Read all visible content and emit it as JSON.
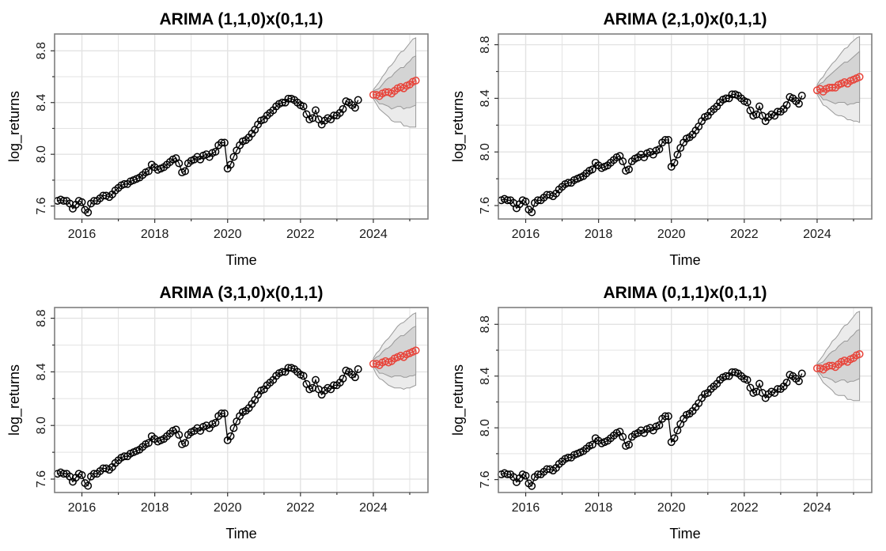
{
  "chart_data": [
    {
      "type": "line",
      "title": "ARIMA (1,1,0)x(0,1,1)",
      "xlabel": "Time",
      "ylabel": "log_returns",
      "xlim": [
        2015.25,
        2025.5
      ],
      "ylim": [
        7.5,
        8.93
      ],
      "x_ticks": [
        2016,
        2018,
        2020,
        2022,
        2024
      ],
      "x_tick_labels": [
        "2016",
        "2018",
        "2020",
        "2022",
        "2024"
      ],
      "y_ticks": [
        7.6,
        8.0,
        8.4,
        8.8
      ],
      "y_tick_labels": [
        "7.6",
        "8.0",
        "8.4",
        "8.8"
      ],
      "grid": true,
      "series": [
        {
          "start": 2015.333,
          "step": 0.08333,
          "values": [
            7.64,
            7.65,
            7.64,
            7.64,
            7.62,
            7.58,
            7.61,
            7.64,
            7.63,
            7.57,
            7.55,
            7.62,
            7.64,
            7.64,
            7.66,
            7.68,
            7.68,
            7.67,
            7.69,
            7.72,
            7.74,
            7.76,
            7.77,
            7.77,
            7.79,
            7.8,
            7.81,
            7.82,
            7.84,
            7.86,
            7.87,
            7.92,
            7.9,
            7.88,
            7.89,
            7.9,
            7.92,
            7.94,
            7.96,
            7.97,
            7.93,
            7.86,
            7.87,
            7.93,
            7.95,
            7.96,
            7.98,
            7.96,
            7.99,
            8.0,
            7.98,
            8.01,
            8.02,
            8.07,
            8.09,
            8.09,
            7.89,
            7.92,
            7.98,
            8.03,
            8.07,
            8.1,
            8.11,
            8.13,
            8.16,
            8.19,
            8.23,
            8.26,
            8.27,
            8.3,
            8.32,
            8.34,
            8.37,
            8.39,
            8.4,
            8.4,
            8.43,
            8.43,
            8.42,
            8.4,
            8.38,
            8.37,
            8.31,
            8.27,
            8.28,
            8.34,
            8.27,
            8.23,
            8.26,
            8.28,
            8.27,
            8.3,
            8.3,
            8.32,
            8.35,
            8.41,
            8.4,
            8.38,
            8.36,
            8.42
          ],
          "color": "#000000"
        },
        {
          "start": 2024.0,
          "step": 0.08333,
          "values": [
            8.46,
            8.46,
            8.45,
            8.47,
            8.48,
            8.48,
            8.47,
            8.49,
            8.51,
            8.52,
            8.51,
            8.53,
            8.54,
            8.56,
            8.57
          ],
          "color": "#e8443a"
        }
      ],
      "intervals": {
        "start": 2024.0,
        "step": 0.08333,
        "inner_low": [
          8.44,
          8.42,
          8.39,
          8.39,
          8.38,
          8.37,
          8.35,
          8.36,
          8.37,
          8.37,
          8.35,
          8.36,
          8.36,
          8.37,
          8.38
        ],
        "inner_high": [
          8.49,
          8.5,
          8.51,
          8.54,
          8.57,
          8.59,
          8.6,
          8.63,
          8.65,
          8.67,
          8.67,
          8.7,
          8.72,
          8.75,
          8.76
        ],
        "outer_low": [
          8.43,
          8.39,
          8.35,
          8.33,
          8.31,
          8.29,
          8.26,
          8.25,
          8.25,
          8.25,
          8.22,
          8.22,
          8.21,
          8.21,
          8.21
        ],
        "outer_high": [
          8.5,
          8.53,
          8.56,
          8.6,
          8.63,
          8.67,
          8.69,
          8.72,
          8.76,
          8.79,
          8.8,
          8.83,
          8.86,
          8.89,
          8.9
        ],
        "inner_color": "#d4d4d4",
        "outer_color": "#ebebeb"
      }
    },
    {
      "type": "line",
      "title": "ARIMA (2,1,0)x(0,1,1)",
      "xlabel": "Time",
      "ylabel": "log_returns",
      "xlim": [
        2015.25,
        2025.5
      ],
      "ylim": [
        7.5,
        8.88
      ],
      "x_ticks": [
        2016,
        2018,
        2020,
        2022,
        2024
      ],
      "x_tick_labels": [
        "2016",
        "2018",
        "2020",
        "2022",
        "2024"
      ],
      "y_ticks": [
        7.6,
        8.0,
        8.4,
        8.8
      ],
      "y_tick_labels": [
        "7.6",
        "8.0",
        "8.4",
        "8.8"
      ],
      "grid": true,
      "series": [
        {
          "start": 2015.333,
          "step": 0.08333,
          "values": [
            7.64,
            7.65,
            7.64,
            7.64,
            7.62,
            7.58,
            7.61,
            7.64,
            7.63,
            7.57,
            7.55,
            7.62,
            7.64,
            7.64,
            7.66,
            7.68,
            7.68,
            7.67,
            7.69,
            7.72,
            7.74,
            7.76,
            7.77,
            7.77,
            7.79,
            7.8,
            7.81,
            7.82,
            7.84,
            7.86,
            7.87,
            7.92,
            7.9,
            7.88,
            7.89,
            7.9,
            7.92,
            7.94,
            7.96,
            7.97,
            7.93,
            7.86,
            7.87,
            7.93,
            7.95,
            7.96,
            7.98,
            7.96,
            7.99,
            8.0,
            7.98,
            8.01,
            8.02,
            8.07,
            8.09,
            8.09,
            7.89,
            7.92,
            7.98,
            8.03,
            8.07,
            8.1,
            8.11,
            8.13,
            8.16,
            8.19,
            8.23,
            8.26,
            8.27,
            8.3,
            8.32,
            8.34,
            8.37,
            8.39,
            8.4,
            8.4,
            8.43,
            8.43,
            8.42,
            8.4,
            8.38,
            8.37,
            8.31,
            8.27,
            8.28,
            8.34,
            8.27,
            8.23,
            8.26,
            8.28,
            8.27,
            8.3,
            8.3,
            8.32,
            8.35,
            8.41,
            8.4,
            8.38,
            8.36,
            8.42
          ],
          "color": "#000000"
        },
        {
          "start": 2024.0,
          "step": 0.08333,
          "values": [
            8.46,
            8.47,
            8.45,
            8.47,
            8.48,
            8.48,
            8.48,
            8.5,
            8.51,
            8.52,
            8.51,
            8.53,
            8.54,
            8.55,
            8.56
          ],
          "color": "#e8443a"
        }
      ],
      "intervals": {
        "start": 2024.0,
        "step": 0.08333,
        "inner_low": [
          8.44,
          8.42,
          8.39,
          8.39,
          8.38,
          8.37,
          8.36,
          8.37,
          8.37,
          8.37,
          8.35,
          8.36,
          8.36,
          8.37,
          8.37
        ],
        "inner_high": [
          8.49,
          8.51,
          8.52,
          8.55,
          8.57,
          8.59,
          8.61,
          8.63,
          8.65,
          8.67,
          8.67,
          8.69,
          8.71,
          8.73,
          8.75
        ],
        "outer_low": [
          8.43,
          8.39,
          8.35,
          8.34,
          8.32,
          8.3,
          8.28,
          8.27,
          8.27,
          8.26,
          8.24,
          8.24,
          8.23,
          8.23,
          8.22
        ],
        "outer_high": [
          8.5,
          8.54,
          8.56,
          8.6,
          8.63,
          8.66,
          8.68,
          8.71,
          8.74,
          8.77,
          8.78,
          8.81,
          8.83,
          8.85,
          8.86
        ],
        "inner_color": "#d4d4d4",
        "outer_color": "#ebebeb"
      }
    },
    {
      "type": "line",
      "title": "ARIMA (3,1,0)x(0,1,1)",
      "xlabel": "Time",
      "ylabel": "log_returns",
      "xlim": [
        2015.25,
        2025.5
      ],
      "ylim": [
        7.5,
        8.88
      ],
      "x_ticks": [
        2016,
        2018,
        2020,
        2022,
        2024
      ],
      "x_tick_labels": [
        "2016",
        "2018",
        "2020",
        "2022",
        "2024"
      ],
      "y_ticks": [
        7.6,
        8.0,
        8.4,
        8.8
      ],
      "y_tick_labels": [
        "7.6",
        "8.0",
        "8.4",
        "8.8"
      ],
      "grid": true,
      "series": [
        {
          "start": 2015.333,
          "step": 0.08333,
          "values": [
            7.64,
            7.65,
            7.64,
            7.64,
            7.62,
            7.58,
            7.61,
            7.64,
            7.63,
            7.57,
            7.55,
            7.62,
            7.64,
            7.64,
            7.66,
            7.68,
            7.68,
            7.67,
            7.69,
            7.72,
            7.74,
            7.76,
            7.77,
            7.77,
            7.79,
            7.8,
            7.81,
            7.82,
            7.84,
            7.86,
            7.87,
            7.92,
            7.9,
            7.88,
            7.89,
            7.9,
            7.92,
            7.94,
            7.96,
            7.97,
            7.93,
            7.86,
            7.87,
            7.93,
            7.95,
            7.96,
            7.98,
            7.96,
            7.99,
            8.0,
            7.98,
            8.01,
            8.02,
            8.07,
            8.09,
            8.09,
            7.89,
            7.92,
            7.98,
            8.03,
            8.07,
            8.1,
            8.11,
            8.13,
            8.16,
            8.19,
            8.23,
            8.26,
            8.27,
            8.3,
            8.32,
            8.34,
            8.37,
            8.39,
            8.4,
            8.4,
            8.43,
            8.43,
            8.42,
            8.4,
            8.38,
            8.37,
            8.31,
            8.27,
            8.28,
            8.34,
            8.27,
            8.23,
            8.26,
            8.28,
            8.27,
            8.3,
            8.3,
            8.32,
            8.35,
            8.41,
            8.4,
            8.38,
            8.36,
            8.42
          ],
          "color": "#000000"
        },
        {
          "start": 2024.0,
          "step": 0.08333,
          "values": [
            8.46,
            8.46,
            8.45,
            8.47,
            8.48,
            8.47,
            8.48,
            8.5,
            8.51,
            8.52,
            8.51,
            8.53,
            8.54,
            8.55,
            8.56
          ],
          "color": "#e8443a"
        }
      ],
      "intervals": {
        "start": 2024.0,
        "step": 0.08333,
        "inner_low": [
          8.44,
          8.42,
          8.39,
          8.39,
          8.38,
          8.37,
          8.36,
          8.37,
          8.37,
          8.37,
          8.36,
          8.36,
          8.37,
          8.37,
          8.38
        ],
        "inner_high": [
          8.49,
          8.51,
          8.52,
          8.55,
          8.57,
          8.58,
          8.6,
          8.63,
          8.65,
          8.67,
          8.67,
          8.69,
          8.71,
          8.73,
          8.74
        ],
        "outer_low": [
          8.43,
          8.38,
          8.35,
          8.34,
          8.32,
          8.3,
          8.29,
          8.28,
          8.28,
          8.28,
          8.27,
          8.28,
          8.28,
          8.29,
          8.3
        ],
        "outer_high": [
          8.5,
          8.54,
          8.56,
          8.6,
          8.63,
          8.65,
          8.68,
          8.71,
          8.74,
          8.76,
          8.77,
          8.79,
          8.81,
          8.83,
          8.84
        ],
        "inner_color": "#d4d4d4",
        "outer_color": "#ebebeb"
      }
    },
    {
      "type": "line",
      "title": "ARIMA (0,1,1)x(0,1,1)",
      "xlabel": "Time",
      "ylabel": "log_returns",
      "xlim": [
        2015.25,
        2025.5
      ],
      "ylim": [
        7.5,
        8.93
      ],
      "x_ticks": [
        2016,
        2018,
        2020,
        2022,
        2024
      ],
      "x_tick_labels": [
        "2016",
        "2018",
        "2020",
        "2022",
        "2024"
      ],
      "y_ticks": [
        7.6,
        8.0,
        8.4,
        8.8
      ],
      "y_tick_labels": [
        "7.6",
        "8.0",
        "8.4",
        "8.8"
      ],
      "grid": true,
      "series": [
        {
          "start": 2015.333,
          "step": 0.08333,
          "values": [
            7.64,
            7.65,
            7.64,
            7.64,
            7.62,
            7.58,
            7.61,
            7.64,
            7.63,
            7.57,
            7.55,
            7.62,
            7.64,
            7.64,
            7.66,
            7.68,
            7.68,
            7.67,
            7.69,
            7.72,
            7.74,
            7.76,
            7.77,
            7.77,
            7.79,
            7.8,
            7.81,
            7.82,
            7.84,
            7.86,
            7.87,
            7.92,
            7.9,
            7.88,
            7.89,
            7.9,
            7.92,
            7.94,
            7.96,
            7.97,
            7.93,
            7.86,
            7.87,
            7.93,
            7.95,
            7.96,
            7.98,
            7.96,
            7.99,
            8.0,
            7.98,
            8.01,
            8.02,
            8.07,
            8.09,
            8.09,
            7.89,
            7.92,
            7.98,
            8.03,
            8.07,
            8.1,
            8.11,
            8.13,
            8.16,
            8.19,
            8.23,
            8.26,
            8.27,
            8.3,
            8.32,
            8.34,
            8.37,
            8.39,
            8.4,
            8.4,
            8.43,
            8.43,
            8.42,
            8.4,
            8.38,
            8.37,
            8.31,
            8.27,
            8.28,
            8.34,
            8.27,
            8.23,
            8.26,
            8.28,
            8.27,
            8.3,
            8.3,
            8.32,
            8.35,
            8.41,
            8.4,
            8.38,
            8.36,
            8.42
          ],
          "color": "#000000"
        },
        {
          "start": 2024.0,
          "step": 0.08333,
          "values": [
            8.46,
            8.46,
            8.45,
            8.47,
            8.48,
            8.48,
            8.47,
            8.49,
            8.51,
            8.52,
            8.51,
            8.53,
            8.54,
            8.56,
            8.57
          ],
          "color": "#e8443a"
        }
      ],
      "intervals": {
        "start": 2024.0,
        "step": 0.08333,
        "inner_low": [
          8.44,
          8.42,
          8.39,
          8.39,
          8.38,
          8.37,
          8.35,
          8.36,
          8.37,
          8.37,
          8.35,
          8.36,
          8.36,
          8.37,
          8.38
        ],
        "inner_high": [
          8.49,
          8.5,
          8.51,
          8.54,
          8.57,
          8.59,
          8.6,
          8.63,
          8.65,
          8.67,
          8.67,
          8.7,
          8.72,
          8.75,
          8.76
        ],
        "outer_low": [
          8.43,
          8.39,
          8.35,
          8.33,
          8.31,
          8.29,
          8.26,
          8.25,
          8.25,
          8.25,
          8.22,
          8.22,
          8.21,
          8.21,
          8.21
        ],
        "outer_high": [
          8.5,
          8.53,
          8.56,
          8.6,
          8.63,
          8.67,
          8.69,
          8.72,
          8.76,
          8.79,
          8.8,
          8.83,
          8.86,
          8.89,
          8.9
        ],
        "inner_color": "#d4d4d4",
        "outer_color": "#ebebeb"
      }
    }
  ]
}
